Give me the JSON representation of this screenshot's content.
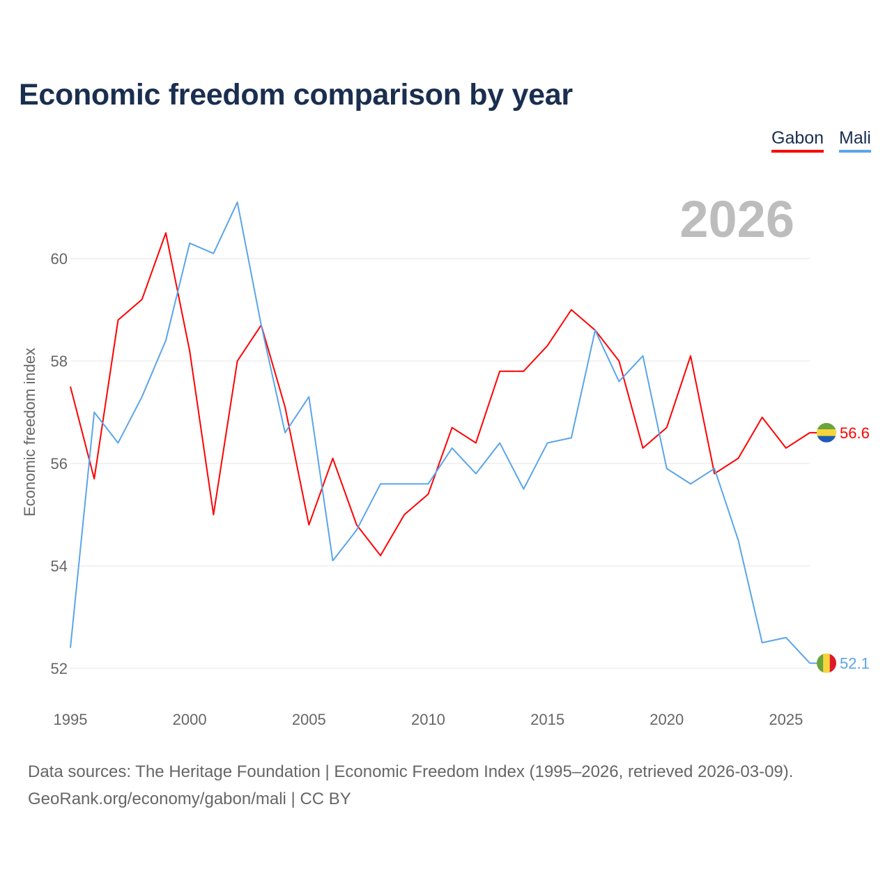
{
  "chart_data": {
    "type": "line",
    "title": "Economic freedom comparison by year",
    "xlabel": "",
    "ylabel": "Economic freedom index",
    "xlim": [
      1995,
      2026
    ],
    "ylim": [
      52,
      61.5
    ],
    "x_ticks": [
      "1995",
      "2000",
      "2005",
      "2010",
      "2015",
      "2020",
      "2025"
    ],
    "y_ticks": [
      "52",
      "54",
      "56",
      "58",
      "60"
    ],
    "grid": true,
    "legend_placement": "top-right",
    "current_year_label": "2026",
    "x": [
      1995,
      1996,
      1997,
      1998,
      1999,
      2000,
      2001,
      2002,
      2003,
      2004,
      2005,
      2006,
      2007,
      2008,
      2009,
      2010,
      2011,
      2012,
      2013,
      2014,
      2015,
      2016,
      2017,
      2018,
      2019,
      2020,
      2021,
      2022,
      2023,
      2024,
      2025,
      2026
    ],
    "series": [
      {
        "name": "Gabon",
        "color": "#ff0000",
        "end_label": "56.6",
        "values": [
          57.5,
          55.7,
          58.8,
          59.2,
          60.5,
          58.2,
          55.0,
          58.0,
          58.7,
          57.1,
          54.8,
          56.1,
          54.8,
          54.2,
          55.0,
          55.4,
          56.7,
          56.4,
          57.8,
          57.8,
          58.3,
          59.0,
          58.6,
          58.0,
          56.3,
          56.7,
          58.1,
          55.8,
          56.1,
          56.9,
          56.3,
          56.6
        ]
      },
      {
        "name": "Mali",
        "color": "#5aa5ea",
        "end_label": "52.1",
        "values": [
          52.4,
          57.0,
          56.4,
          57.3,
          58.4,
          60.3,
          60.1,
          61.1,
          58.7,
          56.6,
          57.3,
          54.1,
          54.7,
          55.6,
          55.6,
          55.6,
          56.3,
          55.8,
          56.4,
          55.5,
          56.4,
          56.5,
          58.6,
          57.6,
          58.1,
          55.9,
          55.6,
          55.9,
          54.5,
          52.5,
          52.6,
          52.1
        ]
      }
    ]
  },
  "footer": {
    "line1": "Data sources: The Heritage Foundation | Economic Freedom Index (1995–2026, retrieved 2026-03-09).",
    "line2": "GeoRank.org/economy/gabon/mali | CC BY"
  }
}
